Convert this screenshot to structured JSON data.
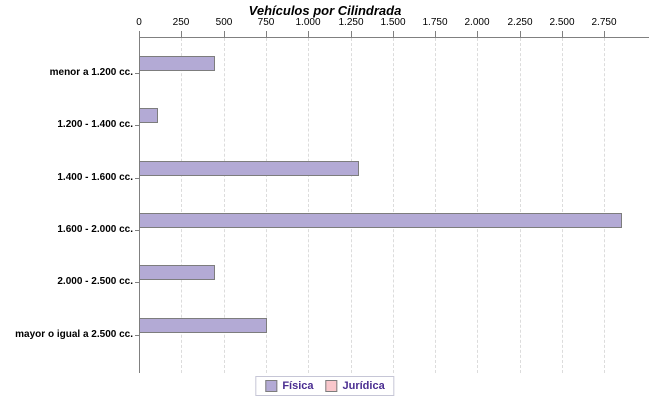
{
  "title": "Vehículos por Cilindrada",
  "chart_data": {
    "type": "bar",
    "orientation": "horizontal",
    "title": "Vehículos por Cilindrada",
    "categories": [
      "menor a 1.200 cc.",
      "1.200 - 1.400 cc.",
      "1.400 - 1.600 cc.",
      "1.600 - 2.000 cc.",
      "2.000 - 2.500 cc.",
      "mayor o igual a 2.500 cc."
    ],
    "series": [
      {
        "name": "Física",
        "color": "#b3aad5",
        "values": [
          440,
          100,
          1290,
          2840,
          435,
          745
        ]
      },
      {
        "name": "Jurídica",
        "color": "#f9c7cb",
        "values": [
          0,
          0,
          0,
          0,
          0,
          0
        ]
      }
    ],
    "xlim": [
      0,
      3000
    ],
    "xticks": [
      0,
      250,
      500,
      750,
      1000,
      1250,
      1500,
      1750,
      2000,
      2250,
      2500,
      2750
    ],
    "xtick_labels": [
      "0",
      "250",
      "500",
      "750",
      "1.000",
      "1.250",
      "1.500",
      "1.750",
      "2.000",
      "2.250",
      "2.500",
      "2.750"
    ],
    "grid": "vertical-dashed",
    "legend_position": "bottom",
    "colors": {
      "axis": "#808080",
      "gridline": "#dcdcdc",
      "bar_border": "#7d7d7d",
      "legend_text": "#4a2d91",
      "legend_border": "#c6c6d6",
      "title_text": "#000000"
    }
  }
}
